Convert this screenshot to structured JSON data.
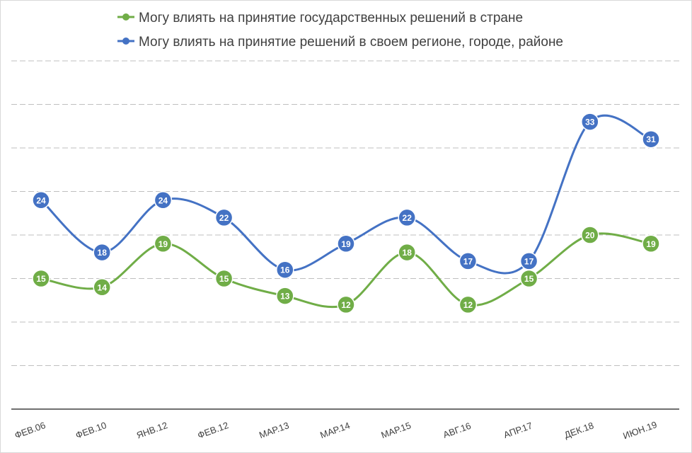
{
  "chart_data": {
    "type": "line",
    "title": "",
    "xlabel": "",
    "ylabel": "",
    "categories": [
      "ФЕВ.06",
      "ФЕВ.10",
      "ЯНВ.12",
      "ФЕВ.12",
      "МАР.13",
      "МАР.14",
      "МАР.15",
      "АВГ.16",
      "АПР.17",
      "ДЕК.18",
      "ИЮН.19"
    ],
    "series": [
      {
        "name": "Могу влиять на принятие государственных решений в стране",
        "color": "#70ad47",
        "values": [
          15,
          14,
          19,
          15,
          13,
          12,
          18,
          12,
          15,
          20,
          19
        ]
      },
      {
        "name": "Могу влиять на принятие решений в своем регионе, городе, районе",
        "color": "#4472c4",
        "values": [
          24,
          18,
          24,
          22,
          16,
          19,
          22,
          17,
          17,
          33,
          31
        ]
      }
    ],
    "ylim": [
      0,
      40
    ],
    "y_gridlines": [
      5,
      10,
      15,
      20,
      25,
      30,
      35,
      40
    ],
    "grid": true,
    "grid_style": "dashed",
    "y_axis_labels": false,
    "smooth_lines": true,
    "data_labels": true,
    "legend_position": "top-center"
  }
}
